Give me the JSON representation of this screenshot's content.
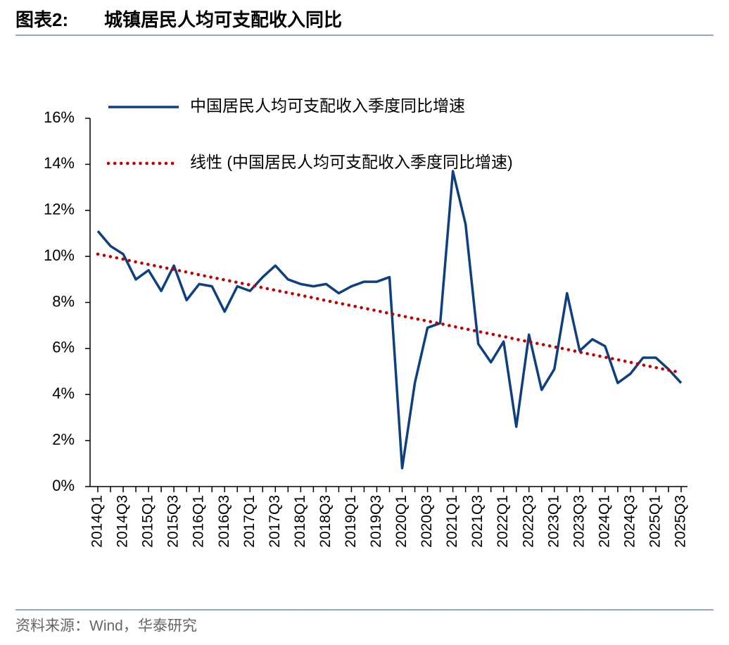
{
  "chart_data": {
    "type": "line",
    "figure_label": "图表2:",
    "title": "城镇居民人均可支配收入同比",
    "source": "资料来源：Wind，华泰研究",
    "categories": [
      "2014Q1",
      null,
      "2014Q3",
      null,
      "2015Q1",
      null,
      "2015Q3",
      null,
      "2016Q1",
      null,
      "2016Q3",
      null,
      "2017Q1",
      null,
      "2017Q3",
      null,
      "2018Q1",
      null,
      "2018Q3",
      null,
      "2019Q1",
      null,
      "2019Q3",
      null,
      "2020Q1",
      null,
      "2020Q3",
      null,
      "2021Q1",
      null,
      "2021Q3",
      null,
      "2022Q1",
      null,
      "2022Q3",
      null,
      "2023Q1",
      null,
      "2023Q3",
      null,
      "2024Q1",
      null,
      "2024Q3",
      null,
      "2025Q1",
      null,
      "2025Q3"
    ],
    "series": [
      {
        "name": "中国居民人均可支配收入季度同比增速",
        "color": "#0e3f7e",
        "style": "solid",
        "values": [
          11.1,
          10.45,
          10.1,
          9.0,
          9.4,
          8.5,
          9.6,
          8.1,
          8.8,
          8.7,
          7.6,
          8.7,
          8.5,
          9.1,
          9.6,
          9.0,
          8.8,
          8.7,
          8.8,
          8.4,
          8.7,
          8.9,
          8.9,
          9.1,
          0.8,
          4.5,
          6.9,
          7.1,
          13.7,
          11.4,
          6.2,
          5.4,
          6.3,
          2.6,
          6.6,
          4.2,
          5.1,
          8.4,
          5.9,
          6.4,
          6.1,
          4.5,
          4.9,
          5.6,
          5.6,
          5.1,
          4.5
        ]
      },
      {
        "name": "线性 (中国居民人均可支配收入季度同比增速)",
        "color": "#c00000",
        "style": "dotted",
        "values": [
          10.1,
          9.99,
          9.88,
          9.76,
          9.65,
          9.54,
          9.43,
          9.32,
          9.2,
          9.09,
          8.98,
          8.87,
          8.76,
          8.64,
          8.53,
          8.42,
          8.31,
          8.2,
          8.08,
          7.97,
          7.86,
          7.75,
          7.64,
          7.52,
          7.41,
          7.3,
          7.19,
          7.08,
          6.96,
          6.85,
          6.74,
          6.63,
          6.52,
          6.4,
          6.29,
          6.18,
          6.07,
          5.96,
          5.84,
          5.73,
          5.62,
          5.51,
          5.4,
          5.28,
          5.17,
          5.06,
          4.95
        ]
      }
    ],
    "ylim": [
      0,
      16
    ],
    "yticks": [
      {
        "value": 0,
        "label": "0%"
      },
      {
        "value": 2,
        "label": "2%"
      },
      {
        "value": 4,
        "label": "4%"
      },
      {
        "value": 6,
        "label": "6%"
      },
      {
        "value": 8,
        "label": "8%"
      },
      {
        "value": 10,
        "label": "10%"
      },
      {
        "value": 12,
        "label": "12%"
      },
      {
        "value": 14,
        "label": "14%"
      },
      {
        "value": 16,
        "label": "16%"
      }
    ],
    "grid": false,
    "legend": "top"
  }
}
